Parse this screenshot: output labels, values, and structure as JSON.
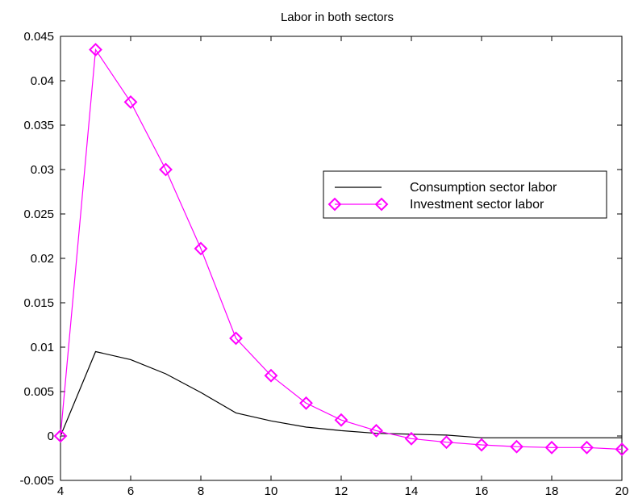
{
  "chart_data": {
    "type": "line",
    "title": "Labor in both sectors",
    "xlabel": "",
    "ylabel": "",
    "xlim": [
      4,
      20
    ],
    "ylim": [
      -0.005,
      0.045
    ],
    "x_ticks": [
      4,
      6,
      8,
      10,
      12,
      14,
      16,
      18,
      20
    ],
    "y_ticks": [
      -0.005,
      0,
      0.005,
      0.01,
      0.015,
      0.02,
      0.025,
      0.03,
      0.035,
      0.04,
      0.045
    ],
    "y_tick_labels": [
      "-0.005",
      "0",
      "0.005",
      "0.01",
      "0.015",
      "0.02",
      "0.025",
      "0.03",
      "0.035",
      "0.04",
      "0.045"
    ],
    "x": [
      4,
      5,
      6,
      7,
      8,
      9,
      10,
      11,
      12,
      13,
      14,
      15,
      16,
      17,
      18,
      19,
      20
    ],
    "series": [
      {
        "name": "Consumption sector labor",
        "color": "#000000",
        "marker": "none",
        "values": [
          0,
          0.0095,
          0.0086,
          0.007,
          0.0049,
          0.0026,
          0.0017,
          0.001,
          0.0006,
          0.0003,
          0.0002,
          0.0001,
          -0.0002,
          -0.0002,
          -0.0002,
          -0.0002,
          -0.0002
        ]
      },
      {
        "name": "Investment sector labor",
        "color": "#ff00ff",
        "marker": "diamond",
        "values": [
          0,
          0.0435,
          0.0376,
          0.03,
          0.0211,
          0.011,
          0.0068,
          0.0037,
          0.0018,
          0.0006,
          -0.0003,
          -0.0007,
          -0.001,
          -0.0012,
          -0.0013,
          -0.0013,
          -0.0015
        ]
      }
    ],
    "grid": false,
    "legend_position": "right"
  }
}
